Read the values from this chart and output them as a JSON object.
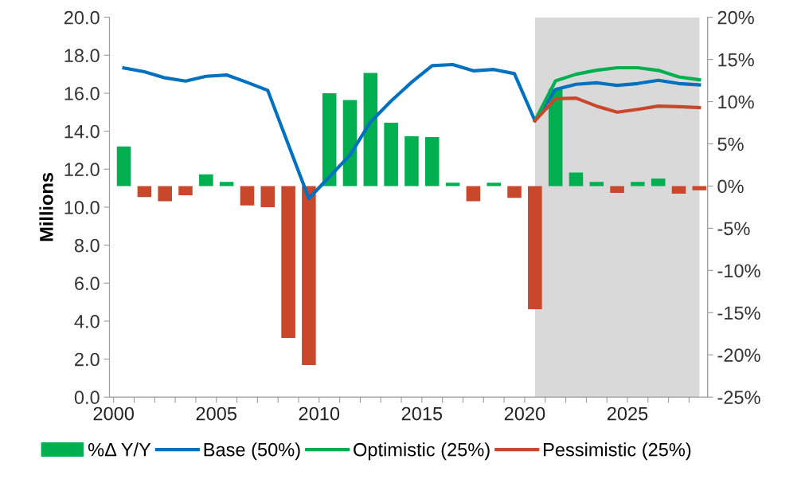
{
  "chart_data": {
    "type": "line",
    "ylabel": "Millions",
    "x": [
      2000,
      2001,
      2002,
      2003,
      2004,
      2005,
      2006,
      2007,
      2008,
      2009,
      2010,
      2011,
      2012,
      2013,
      2014,
      2015,
      2016,
      2017,
      2018,
      2019,
      2020,
      2021,
      2022,
      2023,
      2024,
      2025,
      2026,
      2027,
      2028
    ],
    "series": [
      {
        "name": "%Δ Y/Y",
        "type": "bar",
        "axis": "y2",
        "color": "#00b050",
        "values": [
          4.7,
          -1.3,
          -1.8,
          -1.1,
          1.4,
          0.5,
          -2.3,
          -2.5,
          -18.0,
          -21.2,
          11.0,
          10.2,
          13.4,
          7.5,
          5.9,
          5.8,
          0.4,
          -1.8,
          0.4,
          -1.4,
          -14.6,
          11.5,
          1.6,
          0.5,
          -0.8,
          0.5,
          0.9,
          -0.9,
          -0.5
        ],
        "colors": [
          "#00b050",
          "#c9472a",
          "#c9472a",
          "#c9472a",
          "#00b050",
          "#00b050",
          "#c9472a",
          "#c9472a",
          "#c9472a",
          "#c9472a",
          "#00b050",
          "#00b050",
          "#00b050",
          "#00b050",
          "#00b050",
          "#00b050",
          "#00b050",
          "#c9472a",
          "#00b050",
          "#c9472a",
          "#c9472a",
          "#00b050",
          "#00b050",
          "#00b050",
          "#c9472a",
          "#00b050",
          "#00b050",
          "#c9472a",
          "#c9472a"
        ]
      },
      {
        "name": "Base (50%)",
        "color": "#0070c0",
        "values": [
          17.33,
          17.13,
          16.81,
          16.64,
          16.89,
          16.96,
          16.57,
          16.15,
          13.3,
          10.46,
          11.6,
          12.74,
          14.49,
          15.59,
          16.58,
          17.45,
          17.51,
          17.18,
          17.25,
          17.03,
          14.55,
          16.2,
          16.47,
          16.55,
          16.41,
          16.51,
          16.68,
          16.51,
          16.44
        ]
      },
      {
        "name": "Optimistic (25%)",
        "color": "#00b050",
        "x": [
          2020,
          2021,
          2022,
          2023,
          2024,
          2025,
          2026,
          2027,
          2028
        ],
        "values": [
          14.55,
          16.65,
          17.0,
          17.21,
          17.34,
          17.34,
          17.2,
          16.86,
          16.71
        ]
      },
      {
        "name": "Pessimistic (25%)",
        "color": "#c9472a",
        "x": [
          2020,
          2021,
          2022,
          2023,
          2024,
          2025,
          2026,
          2027,
          2028
        ],
        "values": [
          14.55,
          15.71,
          15.74,
          15.32,
          15.0,
          15.15,
          15.32,
          15.29,
          15.24
        ]
      }
    ],
    "xlim": [
      1999.3,
      2028.4
    ],
    "xticks": [
      {
        "value": 1999.5,
        "label": "2000"
      },
      {
        "value": 2000.5,
        "label": null
      },
      {
        "value": 2001.5,
        "label": null
      },
      {
        "value": 2002.5,
        "label": null
      },
      {
        "value": 2003.5,
        "label": null
      },
      {
        "value": 2004.5,
        "label": "2005"
      },
      {
        "value": 2005.5,
        "label": null
      },
      {
        "value": 2006.5,
        "label": null
      },
      {
        "value": 2007.5,
        "label": null
      },
      {
        "value": 2008.5,
        "label": null
      },
      {
        "value": 2009.5,
        "label": "2010"
      },
      {
        "value": 2010.5,
        "label": null
      },
      {
        "value": 2011.5,
        "label": null
      },
      {
        "value": 2012.5,
        "label": null
      },
      {
        "value": 2013.5,
        "label": null
      },
      {
        "value": 2014.5,
        "label": "2015"
      },
      {
        "value": 2015.5,
        "label": null
      },
      {
        "value": 2016.5,
        "label": null
      },
      {
        "value": 2017.5,
        "label": null
      },
      {
        "value": 2018.5,
        "label": null
      },
      {
        "value": 2019.5,
        "label": "2020"
      },
      {
        "value": 2020.5,
        "label": null
      },
      {
        "value": 2021.5,
        "label": null
      },
      {
        "value": 2022.5,
        "label": null
      },
      {
        "value": 2023.5,
        "label": null
      },
      {
        "value": 2024.5,
        "label": "2025"
      },
      {
        "value": 2025.5,
        "label": null
      },
      {
        "value": 2026.5,
        "label": null
      },
      {
        "value": 2027.5,
        "label": null
      }
    ],
    "ylim": [
      0,
      20
    ],
    "yticks": [
      {
        "value": 0,
        "label": "0.0"
      },
      {
        "value": 2,
        "label": "2.0"
      },
      {
        "value": 4,
        "label": "4.0"
      },
      {
        "value": 6,
        "label": "6.0"
      },
      {
        "value": 8,
        "label": "8.0"
      },
      {
        "value": 10,
        "label": "10.0"
      },
      {
        "value": 12,
        "label": "12.0"
      },
      {
        "value": 14,
        "label": "14.0"
      },
      {
        "value": 16,
        "label": "16.0"
      },
      {
        "value": 18,
        "label": "18.0"
      },
      {
        "value": 20,
        "label": "20.0"
      }
    ],
    "y2lim": [
      -25,
      20
    ],
    "y2ticks": [
      {
        "value": -25,
        "label": "-25%"
      },
      {
        "value": -20,
        "label": "-20%"
      },
      {
        "value": -15,
        "label": "-15%"
      },
      {
        "value": -10,
        "label": "-10%"
      },
      {
        "value": -5,
        "label": "-5%"
      },
      {
        "value": 0,
        "label": "0%"
      },
      {
        "value": 5,
        "label": "5%"
      },
      {
        "value": 10,
        "label": "10%"
      },
      {
        "value": 15,
        "label": "15%"
      },
      {
        "value": 20,
        "label": "20%"
      }
    ],
    "bands": [
      {
        "axis": "x",
        "from": 2020,
        "to": 2028,
        "color": "#d9d9d9"
      }
    ],
    "legend": "bottom",
    "grid": false
  }
}
